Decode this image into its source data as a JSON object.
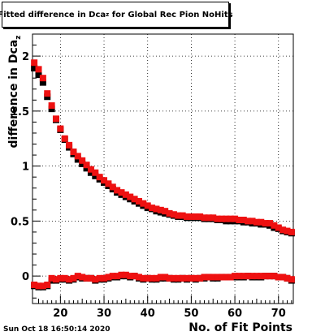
{
  "header": {
    "title_main": "Fitted difference in Dca",
    "title_sub": "z",
    "title_rest": "for Global Rec Pion NoHits"
  },
  "axes": {
    "ylabel_main": "difference in Dca",
    "ylabel_sub": "z",
    "xlabel": "No. of Fit Points"
  },
  "footer": {
    "datestamp": "Sun Oct 18 16:50:14 2020"
  },
  "chart_data": {
    "type": "scatter",
    "title": "Fitted difference in Dca_z for Global Rec Pion NoHits",
    "xlabel": "No. of Fit Points",
    "ylabel": "difference in Dca_z",
    "xlim": [
      13.6,
      73.4
    ],
    "ylim": [
      -0.25,
      2.2
    ],
    "xticks": [
      20,
      30,
      40,
      50,
      60,
      70
    ],
    "yticks": [
      0,
      0.5,
      1,
      1.5,
      2
    ],
    "ytick_labels": [
      "0",
      "0.5",
      "1",
      "1.5",
      "2"
    ],
    "grid": true,
    "colors": {
      "series_a": "#000000",
      "series_b": "#ee1111"
    },
    "series": [
      {
        "x": [
          14,
          15,
          16,
          17,
          18,
          19,
          20,
          21,
          22,
          23,
          24,
          25,
          26,
          27,
          28,
          29,
          30,
          31,
          32,
          33,
          34,
          35,
          36,
          37,
          38,
          39,
          40,
          41,
          42,
          43,
          44,
          45,
          46,
          47,
          48,
          49,
          50,
          51,
          52,
          53,
          54,
          55,
          56,
          57,
          58,
          59,
          60,
          61,
          62,
          63,
          64,
          65,
          66,
          67,
          68,
          69,
          70,
          71,
          72,
          73
        ],
        "values": [
          1.89,
          1.83,
          1.76,
          1.63,
          1.52,
          1.42,
          1.33,
          1.24,
          1.17,
          1.11,
          1.06,
          1.02,
          0.98,
          0.94,
          0.91,
          0.88,
          0.85,
          0.82,
          0.79,
          0.76,
          0.74,
          0.72,
          0.7,
          0.68,
          0.66,
          0.64,
          0.62,
          0.61,
          0.59,
          0.58,
          0.57,
          0.56,
          0.55,
          0.54,
          0.54,
          0.53,
          0.53,
          0.53,
          0.53,
          0.52,
          0.52,
          0.52,
          0.51,
          0.51,
          0.5,
          0.5,
          0.5,
          0.5,
          0.49,
          0.49,
          0.48,
          0.48,
          0.47,
          0.47,
          0.46,
          0.44,
          0.43,
          0.41,
          0.4,
          0.39
        ]
      },
      {
        "x": [
          14,
          15,
          16,
          17,
          18,
          19,
          20,
          21,
          22,
          23,
          24,
          25,
          26,
          27,
          28,
          29,
          30,
          31,
          32,
          33,
          34,
          35,
          36,
          37,
          38,
          39,
          40,
          41,
          42,
          43,
          44,
          45,
          46,
          47,
          48,
          49,
          50,
          51,
          52,
          53,
          54,
          55,
          56,
          57,
          58,
          59,
          60,
          61,
          62,
          63,
          64,
          65,
          66,
          67,
          68,
          69,
          70,
          71,
          72,
          73
        ],
        "values": [
          1.94,
          1.88,
          1.8,
          1.66,
          1.55,
          1.43,
          1.34,
          1.25,
          1.19,
          1.13,
          1.09,
          1.05,
          1.01,
          0.97,
          0.94,
          0.9,
          0.87,
          0.84,
          0.81,
          0.78,
          0.76,
          0.74,
          0.72,
          0.7,
          0.68,
          0.66,
          0.64,
          0.62,
          0.61,
          0.6,
          0.59,
          0.57,
          0.56,
          0.55,
          0.55,
          0.54,
          0.54,
          0.54,
          0.54,
          0.53,
          0.53,
          0.53,
          0.52,
          0.52,
          0.52,
          0.52,
          0.52,
          0.51,
          0.51,
          0.5,
          0.5,
          0.49,
          0.49,
          0.48,
          0.48,
          0.46,
          0.44,
          0.42,
          0.41,
          0.4
        ]
      },
      {
        "x": [
          14,
          15,
          16,
          17,
          18,
          19,
          20,
          21,
          22,
          23,
          24,
          25,
          26,
          27,
          28,
          29,
          30,
          31,
          32,
          33,
          34,
          35,
          36,
          37,
          38,
          39,
          40,
          41,
          42,
          43,
          44,
          45,
          46,
          47,
          48,
          49,
          50,
          51,
          52,
          53,
          54,
          55,
          56,
          57,
          58,
          59,
          60,
          61,
          62,
          63,
          64,
          65,
          66,
          67,
          68,
          69,
          70,
          71,
          72,
          73
        ],
        "values": [
          -0.09,
          -0.1,
          -0.1,
          -0.09,
          -0.04,
          -0.04,
          -0.03,
          -0.03,
          -0.04,
          -0.03,
          -0.01,
          -0.02,
          -0.02,
          -0.02,
          -0.04,
          -0.03,
          -0.03,
          -0.02,
          -0.01,
          -0.01,
          0.0,
          0.0,
          -0.01,
          0.0,
          -0.02,
          -0.03,
          -0.02,
          -0.03,
          -0.03,
          -0.02,
          -0.02,
          -0.02,
          -0.03,
          -0.03,
          -0.02,
          -0.03,
          -0.02,
          -0.03,
          -0.02,
          -0.02,
          -0.01,
          -0.02,
          -0.02,
          -0.01,
          -0.01,
          -0.01,
          -0.01,
          -0.01,
          -0.01,
          0.0,
          -0.01,
          -0.01,
          -0.01,
          0.0,
          0.0,
          0.0,
          -0.01,
          -0.01,
          -0.02,
          -0.04
        ]
      },
      {
        "x": [
          14,
          15,
          16,
          17,
          18,
          19,
          20,
          21,
          22,
          23,
          24,
          25,
          26,
          27,
          28,
          29,
          30,
          31,
          32,
          33,
          34,
          35,
          36,
          37,
          38,
          39,
          40,
          41,
          42,
          43,
          44,
          45,
          46,
          47,
          48,
          49,
          50,
          51,
          52,
          53,
          54,
          55,
          56,
          57,
          58,
          59,
          60,
          61,
          62,
          63,
          64,
          65,
          66,
          67,
          68,
          69,
          70,
          71,
          72,
          73
        ],
        "values": [
          -0.08,
          -0.09,
          -0.09,
          -0.08,
          -0.02,
          -0.03,
          -0.02,
          -0.02,
          -0.03,
          -0.02,
          0.0,
          -0.01,
          -0.02,
          -0.02,
          -0.03,
          -0.02,
          -0.02,
          -0.01,
          0.0,
          0.0,
          0.01,
          0.01,
          0.0,
          0.0,
          -0.01,
          -0.02,
          -0.02,
          -0.02,
          -0.02,
          -0.01,
          -0.01,
          -0.02,
          -0.02,
          -0.02,
          -0.02,
          -0.02,
          -0.02,
          -0.02,
          -0.02,
          -0.01,
          -0.01,
          -0.01,
          -0.01,
          -0.01,
          -0.01,
          -0.01,
          0.0,
          0.0,
          0.0,
          0.0,
          0.0,
          0.0,
          0.0,
          0.0,
          0.0,
          0.0,
          -0.01,
          -0.01,
          -0.02,
          -0.03
        ]
      }
    ]
  }
}
